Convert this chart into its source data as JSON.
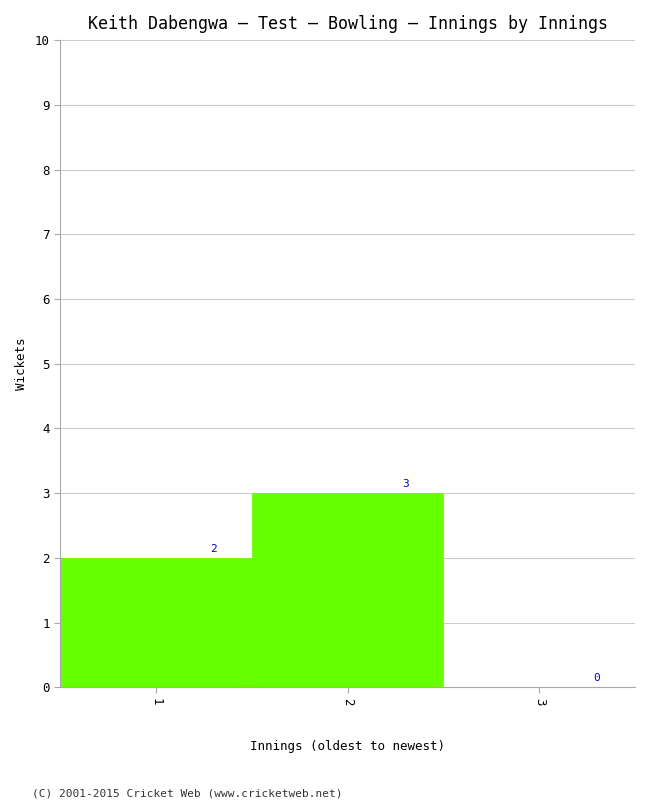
{
  "title": "Keith Dabengwa – Test – Bowling – Innings by Innings",
  "xlabel": "Innings (oldest to newest)",
  "ylabel": "Wickets",
  "categories": [
    "1",
    "2",
    "3"
  ],
  "values": [
    2,
    3,
    0
  ],
  "bar_color": "#66ff00",
  "bar_edge_color": "#66ff00",
  "ylim": [
    0,
    10
  ],
  "yticks": [
    0,
    1,
    2,
    3,
    4,
    5,
    6,
    7,
    8,
    9,
    10
  ],
  "background_color": "#ffffff",
  "grid_color": "#cccccc",
  "label_color": "#0000cc",
  "footer": "(C) 2001-2015 Cricket Web (www.cricketweb.net)",
  "title_fontsize": 12,
  "axis_label_fontsize": 9,
  "tick_fontsize": 9,
  "annotation_fontsize": 8,
  "footer_fontsize": 8,
  "xlim_left": 0.5,
  "xlim_right": 3.5,
  "bar_width": 1.0
}
